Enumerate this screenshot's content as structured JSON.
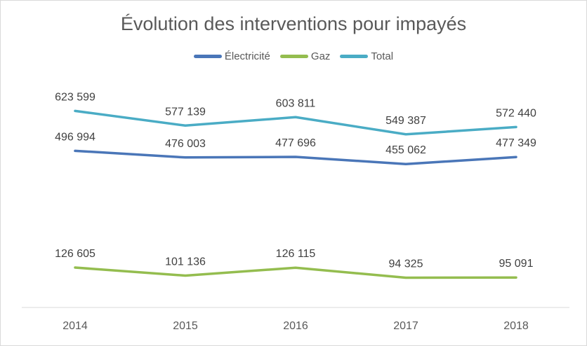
{
  "chart_data": {
    "type": "line",
    "title": "Évolution des interventions pour impayés",
    "categories": [
      "2014",
      "2015",
      "2016",
      "2017",
      "2018"
    ],
    "series": [
      {
        "name": "Électricité",
        "color": "#4a76b8",
        "values": [
          496994,
          476003,
          477696,
          455062,
          477349
        ],
        "labels": [
          "496 994",
          "476 003",
          "477 696",
          "455 062",
          "477 349"
        ]
      },
      {
        "name": "Gaz",
        "color": "#94bd4f",
        "values": [
          126605,
          101136,
          126115,
          94325,
          95091
        ],
        "labels": [
          "126 605",
          "101 136",
          "126 115",
          "94 325",
          "95 091"
        ]
      },
      {
        "name": "Total",
        "color": "#4aacc5",
        "values": [
          623599,
          577139,
          603811,
          549387,
          572440
        ],
        "labels": [
          "623 599",
          "577 139",
          "603 811",
          "549 387",
          "572 440"
        ]
      }
    ],
    "xlabel": "",
    "ylabel": "",
    "ylim": [
      0,
      700000
    ],
    "grid": false,
    "legend_position": "top"
  }
}
